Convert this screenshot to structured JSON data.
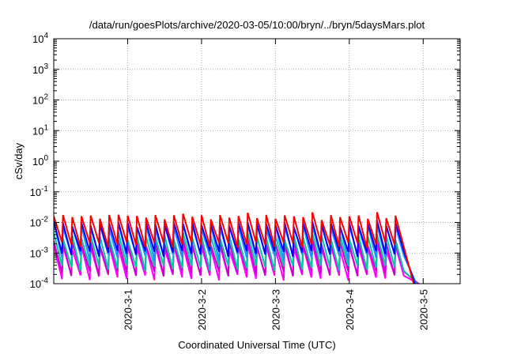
{
  "chart_data": {
    "type": "line",
    "title": "/data/run/goesPlots/archive/2020-03-05/10:00/bryn/../bryn/5daysMars.plot",
    "xlabel": "Coordinated Universal Time (UTC)",
    "ylabel": "cSv/day",
    "xlim": [
      "2020-02-29 00:00",
      "2020-03-05 12:00"
    ],
    "ylim": [
      0.0001,
      10000
    ],
    "yscale": "log",
    "grid": true,
    "x_ticks": [
      "2020-3-1",
      "2020-3-2",
      "2020-3-3",
      "2020-3-4",
      "2020-3-5"
    ],
    "y_ticks": [
      {
        "value": 0.0001,
        "base": "10",
        "exp": "-4"
      },
      {
        "value": 0.001,
        "base": "10",
        "exp": "-3"
      },
      {
        "value": 0.01,
        "base": "10",
        "exp": "-2"
      },
      {
        "value": 0.1,
        "base": "10",
        "exp": "-1"
      },
      {
        "value": 1,
        "base": "10",
        "exp": "0"
      },
      {
        "value": 10,
        "base": "10",
        "exp": "1"
      },
      {
        "value": 100,
        "base": "10",
        "exp": "2"
      },
      {
        "value": 1000,
        "base": "10",
        "exp": "3"
      },
      {
        "value": 10000,
        "base": "10",
        "exp": "4"
      }
    ],
    "series_colors": [
      "#ff0000",
      "#0000ff",
      "#1e90ff",
      "#00c8a0",
      "#cc00cc",
      "#ff00ff"
    ],
    "sawtooth": {
      "start": "2020-02-29 00:00",
      "end": "2020-03-04 16:00",
      "drop_until": "2020-03-04 21:00",
      "period_hours": 3,
      "series_peaks": [
        0.016,
        0.009,
        0.0075,
        0.0035,
        0.0022,
        0.0016
      ],
      "series_troughs": [
        0.0017,
        0.0009,
        0.0007,
        0.0003,
        0.0002,
        0.00015
      ]
    }
  }
}
